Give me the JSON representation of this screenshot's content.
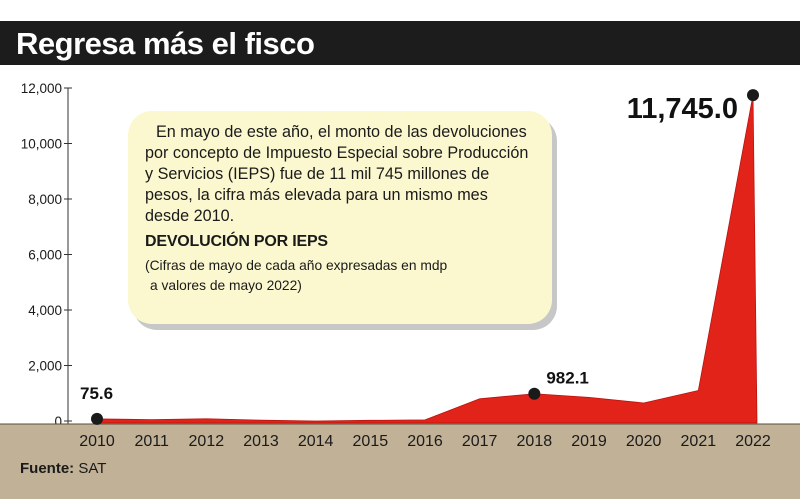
{
  "header": {
    "title": "Regresa más el fisco"
  },
  "callout": {
    "body": "En mayo de este año, el monto de las devoluciones por concepto de Impuesto Especial sobre Producción y Servicios (IEPS) fue de 11 mil 745 millones de pesos, la cifra más elevada para un mismo mes desde 2010.",
    "subtitle": "DEVOLUCIÓN POR IEPS",
    "note_line1": "(Cifras de mayo de cada año expresadas en mdp",
    "note_line2": "a valores de mayo 2022)"
  },
  "footer": {
    "source_label": "Fuente:",
    "source_value": "SAT"
  },
  "colors": {
    "area": "#e2231a",
    "ground": "#c1b196",
    "title_bar": "#1c1c1c",
    "callout": "#fbf8cf"
  },
  "chart_data": {
    "type": "area",
    "x": [
      2010,
      2011,
      2012,
      2013,
      2014,
      2015,
      2016,
      2017,
      2018,
      2019,
      2020,
      2021,
      2022
    ],
    "values": [
      75.6,
      50,
      80,
      30,
      0,
      25,
      40,
      800,
      982.1,
      850,
      650,
      1100,
      11745.0
    ],
    "ylim": [
      0,
      12000
    ],
    "yticks": [
      0,
      2000,
      4000,
      6000,
      8000,
      10000,
      12000
    ],
    "ytick_labels": [
      "0",
      "2,000",
      "4,000",
      "6,000",
      "8,000",
      "10,000",
      "12,000"
    ],
    "xtick_labels": [
      "2010",
      "2011",
      "2012",
      "2013",
      "2014",
      "2015",
      "2016",
      "2017",
      "2018",
      "2019",
      "2020",
      "2021",
      "2022"
    ],
    "annotations": [
      {
        "x": 2010,
        "y": 75.6,
        "label": "75.6"
      },
      {
        "x": 2018,
        "y": 982.1,
        "label": "982.1"
      },
      {
        "x": 2022,
        "y": 11745.0,
        "label": "11,745.0"
      }
    ],
    "grid": false,
    "title": "",
    "xlabel": "",
    "ylabel": ""
  }
}
